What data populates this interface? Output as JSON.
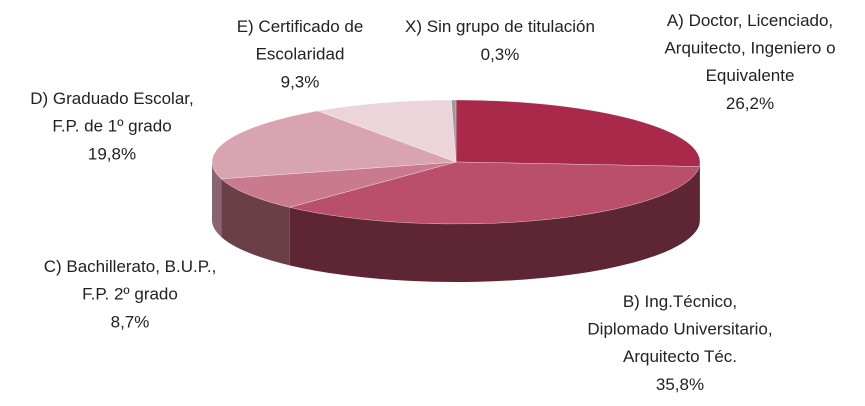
{
  "chart_data": {
    "type": "pie",
    "categories": [
      "A) Doctor, Licenciado,\nArquitecto, Ingeniero o\nEquivalente",
      "B) Ing.Técnico,\nDiplomado Universitario,\nArquitecto Téc.",
      "C) Bachillerato, B.U.P.,\nF.P. 2º grado",
      "D) Graduado Escolar,\nF.P. de 1º grado",
      "E) Certificado de\nEscolaridad",
      "X) Sin grupo de titulación"
    ],
    "values": [
      26.2,
      35.8,
      8.7,
      19.8,
      9.3,
      0.3
    ],
    "value_labels": [
      "26,2%",
      "35,8%",
      "8,7%",
      "19,8%",
      "9,3%",
      "0,3%"
    ],
    "colors": [
      "#a8294a",
      "#b94f6a",
      "#c97a8e",
      "#d9a4b1",
      "#ecd5da",
      "#9a9a9a"
    ],
    "side_colors": [
      "#6e1a31",
      "#5e2535",
      "#6b3f48",
      "#8a6470",
      "#9c8a8e",
      "#666666"
    ]
  }
}
